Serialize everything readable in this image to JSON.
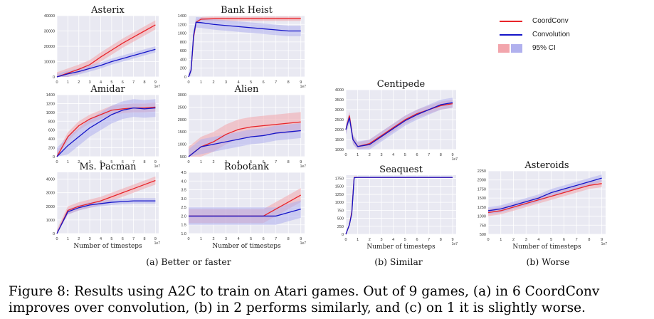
{
  "colors": {
    "coordconv": "#e8242a",
    "convolution": "#1515c8",
    "ci_red": "#f2a5ac",
    "ci_blue": "#b1b1ee",
    "grid": "#ffffff",
    "panel_bg": "#e9e9f2"
  },
  "legend": {
    "coordconv": "CoordConv",
    "convolution": "Convolution",
    "ci": "95% CI"
  },
  "subcaptions": {
    "better": "(a) Better or faster",
    "similar": "(b) Similar",
    "worse": "(b) Worse"
  },
  "caption": "Figure 8: Results using A2C to train on Atari games. Out of 9 games, (a) in 6 CoordConv improves over convolution, (b) in 2 performs similarly, and (c) on 1 it is slightly worse.",
  "chart_data": [
    {
      "type": "line",
      "title": "Asterix",
      "xlabel": "",
      "x_exponent": "1e7",
      "xlim": [
        0,
        9.3
      ],
      "xticks": [
        "0",
        "1",
        "2",
        "3",
        "4",
        "5",
        "6",
        "7",
        "8",
        "9"
      ],
      "ylim": [
        0,
        40000
      ],
      "yticks": [
        "0",
        "10000",
        "20000",
        "30000",
        "40000"
      ],
      "series": [
        {
          "name": "CoordConv",
          "x": [
            0,
            1,
            2,
            3,
            4,
            5,
            6,
            7,
            8,
            9
          ],
          "y": [
            0,
            2500,
            5000,
            8000,
            13000,
            17500,
            22000,
            26000,
            30000,
            34000
          ],
          "ci": 3000
        },
        {
          "name": "Convolution",
          "x": [
            0,
            1,
            2,
            3,
            4,
            5,
            6,
            7,
            8,
            9
          ],
          "y": [
            0,
            2000,
            3500,
            5500,
            7500,
            10000,
            12000,
            14000,
            16000,
            18000
          ],
          "ci": 2000
        }
      ]
    },
    {
      "type": "line",
      "title": "Bank Heist",
      "xlabel": "",
      "x_exponent": "1e7",
      "xlim": [
        0,
        9.3
      ],
      "xticks": [
        "0",
        "1",
        "2",
        "3",
        "4",
        "5",
        "6",
        "7",
        "8",
        "9"
      ],
      "ylim": [
        0,
        1400
      ],
      "yticks": [
        "0",
        "200",
        "400",
        "600",
        "800",
        "1000",
        "1200",
        "1400"
      ],
      "series": [
        {
          "name": "CoordConv",
          "x": [
            0,
            0.2,
            0.4,
            0.6,
            1,
            2,
            4,
            6,
            8,
            9
          ],
          "y": [
            0,
            150,
            900,
            1250,
            1320,
            1330,
            1330,
            1330,
            1330,
            1330
          ],
          "ci": 50
        },
        {
          "name": "Convolution",
          "x": [
            0,
            0.2,
            0.4,
            0.6,
            1,
            2,
            4,
            6,
            8,
            9
          ],
          "y": [
            0,
            150,
            950,
            1250,
            1240,
            1200,
            1150,
            1100,
            1050,
            1050
          ],
          "ci": 120
        }
      ]
    },
    {
      "type": "line",
      "title": "Amidar",
      "xlabel": "",
      "x_exponent": "1e7",
      "xlim": [
        0,
        9.3
      ],
      "xticks": [
        "0",
        "1",
        "2",
        "3",
        "4",
        "5",
        "6",
        "7",
        "8",
        "9"
      ],
      "ylim": [
        0,
        1400
      ],
      "yticks": [
        "0",
        "200",
        "400",
        "600",
        "800",
        "1000",
        "1200",
        "1400"
      ],
      "series": [
        {
          "name": "CoordConv",
          "x": [
            0,
            1,
            2,
            3,
            4,
            5,
            6,
            7,
            8,
            9
          ],
          "y": [
            0,
            450,
            700,
            850,
            950,
            1050,
            1080,
            1100,
            1100,
            1120
          ],
          "ci": 100
        },
        {
          "name": "Convolution",
          "x": [
            0,
            1,
            2,
            3,
            4,
            5,
            6,
            7,
            8,
            9
          ],
          "y": [
            0,
            250,
            450,
            650,
            800,
            950,
            1050,
            1100,
            1080,
            1100
          ],
          "ci": 200
        }
      ]
    },
    {
      "type": "line",
      "title": "Alien",
      "xlabel": "",
      "x_exponent": "1e7",
      "xlim": [
        0,
        9.3
      ],
      "xticks": [
        "0",
        "1",
        "2",
        "3",
        "4",
        "5",
        "6",
        "7",
        "8",
        "9"
      ],
      "ylim": [
        500,
        3000
      ],
      "yticks": [
        "500",
        "1000",
        "1500",
        "2000",
        "2500",
        "3000"
      ],
      "series": [
        {
          "name": "CoordConv",
          "x": [
            0,
            1,
            2,
            3,
            4,
            5,
            6,
            7,
            8,
            9
          ],
          "y": [
            500,
            900,
            1100,
            1400,
            1600,
            1700,
            1750,
            1800,
            1850,
            1900
          ],
          "ci": 400
        },
        {
          "name": "Convolution",
          "x": [
            0,
            1,
            2,
            3,
            4,
            5,
            6,
            7,
            8,
            9
          ],
          "y": [
            500,
            900,
            1000,
            1100,
            1200,
            1300,
            1350,
            1450,
            1500,
            1550
          ],
          "ci": 300
        }
      ]
    },
    {
      "type": "line",
      "title": "Ms. Pacman",
      "xlabel": "Number of timesteps",
      "x_exponent": "1e7",
      "xlim": [
        0,
        9.3
      ],
      "xticks": [
        "0",
        "1",
        "2",
        "3",
        "4",
        "5",
        "6",
        "7",
        "8",
        "9"
      ],
      "ylim": [
        0,
        4500
      ],
      "yticks": [
        "0",
        "1000",
        "2000",
        "3000",
        "4000"
      ],
      "series": [
        {
          "name": "CoordConv",
          "x": [
            0,
            1,
            2,
            3,
            4,
            5,
            6,
            7,
            8,
            9
          ],
          "y": [
            0,
            1700,
            2000,
            2200,
            2400,
            2700,
            3000,
            3300,
            3600,
            3900
          ],
          "ci": 300
        },
        {
          "name": "Convolution",
          "x": [
            0,
            1,
            2,
            3,
            4,
            5,
            6,
            7,
            8,
            9
          ],
          "y": [
            0,
            1600,
            1900,
            2100,
            2200,
            2300,
            2350,
            2400,
            2400,
            2400
          ],
          "ci": 200
        }
      ]
    },
    {
      "type": "line",
      "title": "Robotank",
      "xlabel": "Number of timesteps",
      "x_exponent": "1e7",
      "xlim": [
        0,
        9.3
      ],
      "xticks": [
        "0",
        "1",
        "2",
        "3",
        "4",
        "5",
        "6",
        "7",
        "8",
        "9"
      ],
      "ylim": [
        1.0,
        4.5
      ],
      "yticks": [
        "1.0",
        "1.5",
        "2.0",
        "2.5",
        "3.0",
        "3.5",
        "4.0",
        "4.5"
      ],
      "series": [
        {
          "name": "CoordConv",
          "x": [
            0,
            1,
            2,
            3,
            4,
            5,
            6,
            7,
            8,
            9
          ],
          "y": [
            2,
            2,
            2,
            2,
            2,
            2,
            2,
            2.4,
            2.8,
            3.2
          ],
          "ci": 0.4
        },
        {
          "name": "Convolution",
          "x": [
            0,
            1,
            2,
            3,
            4,
            5,
            6,
            7,
            8,
            9
          ],
          "y": [
            2,
            2,
            2,
            2,
            2,
            2,
            2,
            2,
            2.2,
            2.4
          ],
          "ci": 0.5
        }
      ]
    },
    {
      "type": "line",
      "title": "Centipede",
      "xlabel": "",
      "x_exponent": "1e7",
      "xlim": [
        0,
        9.3
      ],
      "xticks": [
        "0",
        "1",
        "2",
        "3",
        "4",
        "5",
        "6",
        "7",
        "8",
        "9"
      ],
      "ylim": [
        1000,
        4000
      ],
      "yticks": [
        "1000",
        "1500",
        "2000",
        "2500",
        "3000",
        "3500",
        "4000"
      ],
      "series": [
        {
          "name": "CoordConv",
          "x": [
            0,
            0.3,
            0.6,
            1,
            2,
            3,
            4,
            5,
            6,
            7,
            8,
            9
          ],
          "y": [
            2000,
            2700,
            1500,
            1150,
            1300,
            1700,
            2100,
            2500,
            2800,
            3000,
            3200,
            3300
          ],
          "ci": 200
        },
        {
          "name": "Convolution",
          "x": [
            0,
            0.3,
            0.6,
            1,
            2,
            3,
            4,
            5,
            6,
            7,
            8,
            9
          ],
          "y": [
            2000,
            2600,
            1500,
            1150,
            1250,
            1650,
            2050,
            2450,
            2750,
            3000,
            3250,
            3350
          ],
          "ci": 250
        }
      ]
    },
    {
      "type": "line",
      "title": "Seaquest",
      "xlabel": "Number of timesteps",
      "x_exponent": "1e7",
      "xlim": [
        0,
        9.3
      ],
      "xticks": [
        "0",
        "1",
        "2",
        "3",
        "4",
        "5",
        "6",
        "7",
        "8",
        "9"
      ],
      "ylim": [
        0,
        1850
      ],
      "yticks": [
        "0",
        "250",
        "500",
        "750",
        "1000",
        "1250",
        "1500",
        "1750"
      ],
      "series": [
        {
          "name": "CoordConv",
          "x": [
            0,
            0.3,
            0.5,
            0.7,
            1,
            2,
            4,
            6,
            8,
            9
          ],
          "y": [
            0,
            300,
            700,
            1780,
            1780,
            1780,
            1780,
            1780,
            1780,
            1780
          ],
          "ci": 20
        },
        {
          "name": "Convolution",
          "x": [
            0,
            0.3,
            0.5,
            0.7,
            1,
            2,
            4,
            6,
            8,
            9
          ],
          "y": [
            0,
            300,
            650,
            1770,
            1780,
            1780,
            1780,
            1780,
            1780,
            1780
          ],
          "ci": 20
        }
      ]
    },
    {
      "type": "line",
      "title": "Asteroids",
      "xlabel": "Number of timesteps",
      "x_exponent": "1e7",
      "xlim": [
        0,
        9.3
      ],
      "xticks": [
        "0",
        "1",
        "2",
        "3",
        "4",
        "5",
        "6",
        "7",
        "8",
        "9"
      ],
      "ylim": [
        500,
        2250
      ],
      "yticks": [
        "500",
        "750",
        "1000",
        "1250",
        "1500",
        "1750",
        "2000",
        "2250"
      ],
      "series": [
        {
          "name": "CoordConv",
          "x": [
            0,
            1,
            2,
            3,
            4,
            5,
            6,
            7,
            8,
            9
          ],
          "y": [
            1100,
            1150,
            1250,
            1350,
            1450,
            1550,
            1650,
            1750,
            1850,
            1900
          ],
          "ci": 100
        },
        {
          "name": "Convolution",
          "x": [
            0,
            1,
            2,
            3,
            4,
            5,
            6,
            7,
            8,
            9
          ],
          "y": [
            1150,
            1200,
            1300,
            1400,
            1500,
            1650,
            1750,
            1850,
            1950,
            2050
          ],
          "ci": 100
        }
      ]
    }
  ]
}
